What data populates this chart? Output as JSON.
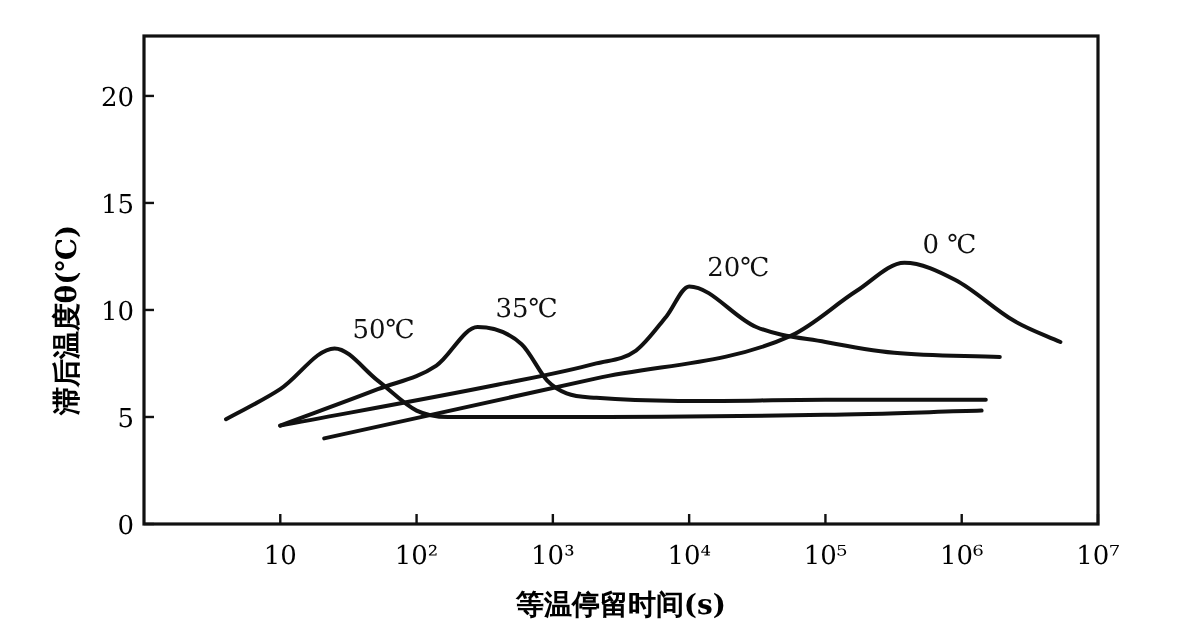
{
  "chart_data": {
    "type": "line",
    "xlabel": "等温停留时间(s)",
    "ylabel": "滞后温度θ(℃)",
    "log": "x",
    "xlim": [
      1,
      10000000
    ],
    "ylim": [
      0,
      22.8
    ],
    "xticks": [
      10,
      {
        "value": 100,
        "label": "10²"
      },
      {
        "value": 1000,
        "label": "10³"
      },
      {
        "value": 10000,
        "label": "10⁴"
      },
      {
        "value": 100000,
        "label": "10⁵"
      },
      {
        "value": 1000000,
        "label": "10⁶"
      },
      {
        "value": 10000000,
        "label": "10⁷"
      }
    ],
    "yticks": [
      0,
      5,
      10,
      15,
      20
    ],
    "line_style": "solid",
    "series": [
      {
        "name": "50℃",
        "color": "#111111",
        "x": [
          4,
          10,
          25,
          52,
          100,
          170,
          1000,
          100000,
          1400000
        ],
        "values": [
          4.9,
          6.3,
          8.2,
          6.7,
          5.3,
          5.0,
          5.0,
          5.1,
          5.3
        ]
      },
      {
        "name": "35℃",
        "color": "#111111",
        "x": [
          10,
          52,
          140,
          280,
          590,
          910,
          1260,
          2090,
          100000,
          1500000
        ],
        "values": [
          4.6,
          6.3,
          7.4,
          9.2,
          8.4,
          6.7,
          6.1,
          5.9,
          5.8,
          5.8
        ]
      },
      {
        "name": "20℃",
        "color": "#111111",
        "x": [
          10,
          390,
          2090,
          4070,
          6800,
          10000,
          31000,
          100000,
          320000,
          1900000
        ],
        "values": [
          4.6,
          6.5,
          7.5,
          8.1,
          9.7,
          11.1,
          9.2,
          8.5,
          8.0,
          7.8
        ]
      },
      {
        "name": "0 ℃",
        "color": "#111111",
        "x": [
          21,
          2090,
          56000,
          170000,
          380000,
          900000,
          2400000,
          5300000
        ],
        "values": [
          4.0,
          6.8,
          8.8,
          10.9,
          12.2,
          11.4,
          9.5,
          8.5
        ]
      }
    ]
  }
}
